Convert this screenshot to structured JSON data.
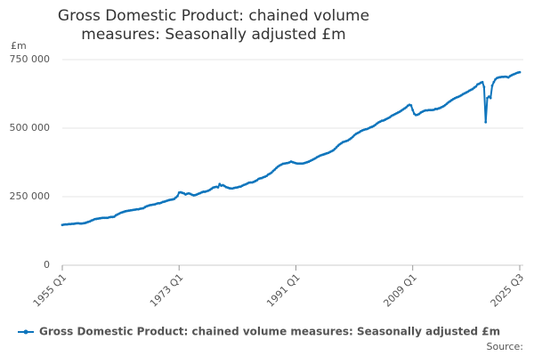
{
  "chart_data": {
    "type": "line",
    "title": "Gross Domestic Product: chained volume measures: Seasonally adjusted £m",
    "y_axis_label": "£m",
    "source": "Source:",
    "categories": [
      "1955 Q1",
      null,
      null,
      null,
      null,
      null,
      null,
      null,
      null,
      null,
      null,
      null,
      null,
      null,
      null,
      null,
      null,
      null,
      null,
      null,
      null,
      null,
      null,
      null,
      null,
      null,
      null,
      null,
      null,
      null,
      null,
      null,
      null,
      null,
      null,
      null,
      null,
      null,
      null,
      null,
      null,
      null,
      null,
      null,
      null,
      null,
      null,
      null,
      null,
      null,
      null,
      null,
      null,
      null,
      null,
      null,
      null,
      null,
      null,
      null,
      null,
      null,
      null,
      null,
      null,
      null,
      null,
      null,
      null,
      null,
      null,
      null,
      "1973 Q1",
      null,
      null,
      null,
      null,
      null,
      null,
      null,
      null,
      null,
      null,
      null,
      null,
      null,
      null,
      null,
      null,
      null,
      null,
      null,
      null,
      null,
      null,
      null,
      null,
      null,
      null,
      null,
      null,
      null,
      null,
      null,
      null,
      null,
      null,
      null,
      null,
      null,
      null,
      null,
      null,
      null,
      null,
      null,
      null,
      null,
      null,
      null,
      null,
      null,
      null,
      null,
      null,
      null,
      null,
      null,
      null,
      null,
      null,
      null,
      null,
      null,
      null,
      null,
      null,
      null,
      null,
      null,
      null,
      null,
      null,
      null,
      "1991 Q1",
      null,
      null,
      null,
      null,
      null,
      null,
      null,
      null,
      null,
      null,
      null,
      null,
      null,
      null,
      null,
      null,
      null,
      null,
      null,
      null,
      null,
      null,
      null,
      null,
      null,
      null,
      null,
      null,
      null,
      null,
      null,
      null,
      null,
      null,
      null,
      null,
      null,
      null,
      null,
      null,
      null,
      null,
      null,
      null,
      null,
      null,
      null,
      null,
      null,
      null,
      null,
      null,
      null,
      null,
      null,
      null,
      null,
      null,
      null,
      null,
      null,
      null,
      null,
      null,
      null,
      null,
      null,
      null,
      null,
      null,
      null,
      "2009 Q1",
      null,
      null,
      null,
      null,
      null,
      null,
      null,
      null,
      null,
      null,
      null,
      null,
      null,
      null,
      null,
      null,
      null,
      null,
      null,
      null,
      null,
      null,
      null,
      null,
      null,
      null,
      null,
      null,
      null,
      null,
      null,
      null,
      null,
      null,
      null,
      null,
      null,
      null,
      null,
      null,
      null,
      null,
      null,
      null,
      null,
      null,
      null,
      null,
      null,
      null,
      null,
      null,
      null,
      null,
      null,
      null,
      null,
      null,
      null,
      null,
      null,
      null,
      null,
      null,
      null,
      "2025 Q3"
    ],
    "series": [
      {
        "name": "Gross Domestic Product: chained volume measures: Seasonally adjusted £m",
        "color": "#0f75bc",
        "values": [
          147000,
          148000,
          149000,
          149000,
          150000,
          150000,
          151000,
          151000,
          152000,
          153000,
          153000,
          152000,
          152000,
          153000,
          154000,
          156000,
          158000,
          160000,
          163000,
          165000,
          168000,
          169000,
          170000,
          171000,
          172000,
          173000,
          173000,
          173000,
          173000,
          175000,
          176000,
          176000,
          177000,
          182000,
          185000,
          188000,
          191000,
          193000,
          195000,
          197000,
          198000,
          199000,
          200000,
          201000,
          202000,
          203000,
          204000,
          204000,
          206000,
          207000,
          208000,
          212000,
          215000,
          217000,
          219000,
          220000,
          221000,
          222000,
          224000,
          226000,
          226000,
          228000,
          231000,
          232000,
          234000,
          236000,
          238000,
          239000,
          240000,
          242000,
          247000,
          252000,
          265000,
          266000,
          264000,
          262000,
          258000,
          261000,
          262000,
          260000,
          257000,
          255000,
          256000,
          258000,
          261000,
          263000,
          266000,
          268000,
          268000,
          270000,
          272000,
          275000,
          279000,
          283000,
          285000,
          286000,
          284000,
          296000,
          290000,
          292000,
          289000,
          285000,
          283000,
          281000,
          280000,
          280000,
          282000,
          283000,
          284000,
          286000,
          287000,
          290000,
          293000,
          295000,
          298000,
          301000,
          302000,
          302000,
          304000,
          307000,
          310000,
          315000,
          317000,
          318000,
          321000,
          323000,
          326000,
          331000,
          334000,
          338000,
          344000,
          349000,
          355000,
          360000,
          364000,
          367000,
          370000,
          371000,
          372000,
          373000,
          375000,
          378000,
          376000,
          374000,
          372000,
          371000,
          371000,
          371000,
          371000,
          372000,
          374000,
          376000,
          378000,
          381000,
          384000,
          387000,
          390000,
          394000,
          397000,
          400000,
          402000,
          404000,
          406000,
          408000,
          410000,
          413000,
          416000,
          419000,
          424000,
          430000,
          436000,
          441000,
          445000,
          449000,
          451000,
          453000,
          455000,
          459000,
          463000,
          468000,
          474000,
          479000,
          482000,
          485000,
          489000,
          492000,
          494000,
          496000,
          497000,
          500000,
          503000,
          505000,
          508000,
          512000,
          517000,
          521000,
          524000,
          527000,
          528000,
          531000,
          534000,
          537000,
          540000,
          545000,
          548000,
          551000,
          554000,
          557000,
          560000,
          564000,
          568000,
          572000,
          576000,
          582000,
          585000,
          583000,
          566000,
          552000,
          548000,
          549000,
          552000,
          557000,
          560000,
          563000,
          565000,
          565000,
          566000,
          566000,
          566000,
          567000,
          570000,
          570000,
          572000,
          574000,
          577000,
          580000,
          584000,
          589000,
          594000,
          598000,
          602000,
          606000,
          609000,
          612000,
          614000,
          617000,
          620000,
          624000,
          627000,
          630000,
          633000,
          637000,
          640000,
          643000,
          648000,
          652000,
          660000,
          662000,
          666000,
          668000,
          650000,
          522000,
          610000,
          615000,
          610000,
          655000,
          668000,
          678000,
          683000,
          685000,
          686000,
          687000,
          687000,
          688000,
          687000,
          685000,
          690000,
          693000,
          696000,
          698000,
          701000,
          703000,
          704000
        ]
      }
    ],
    "ylim": [
      0,
      750000
    ],
    "yticks": [
      0,
      {
        "value": 250000,
        "label": "250 000"
      },
      {
        "value": 500000,
        "label": "500 000"
      },
      {
        "value": 750000,
        "label": "750 000"
      }
    ],
    "grid": true,
    "legend": "bottom"
  }
}
